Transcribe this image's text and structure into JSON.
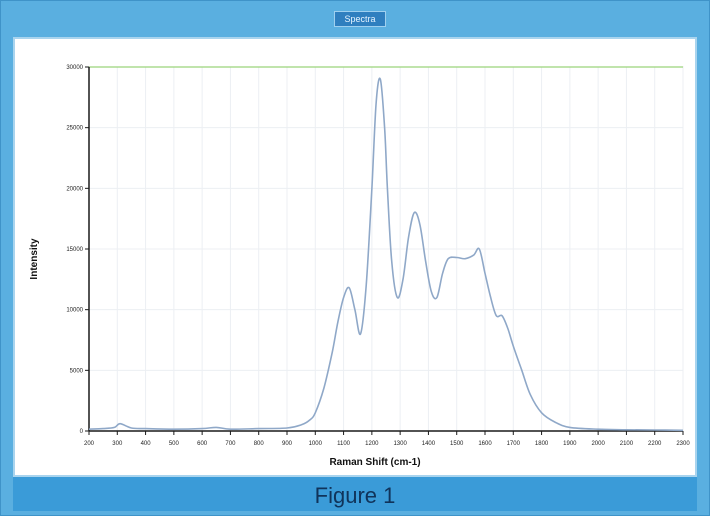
{
  "window": {
    "title_tab": "Spectra"
  },
  "caption": "Figure 1",
  "chart_data": {
    "type": "line",
    "xlabel": "Raman Shift (cm-1)",
    "ylabel": "Intensity",
    "xlim": [
      200,
      2300
    ],
    "ylim": [
      0,
      30000
    ],
    "x_ticks": [
      200,
      300,
      400,
      500,
      600,
      700,
      800,
      900,
      1000,
      1100,
      1200,
      1300,
      1400,
      1500,
      1600,
      1700,
      1800,
      1900,
      2000,
      2100,
      2200,
      2300
    ],
    "y_ticks": [
      0,
      5000,
      10000,
      15000,
      20000,
      25000,
      30000
    ],
    "grid": true,
    "legend": "none",
    "colors": {
      "line": "#8fa8c8",
      "frame": "#a9d4ee",
      "axis": "#1a1a1a",
      "grid": "#eceff3",
      "background_panel": "#5aafe0"
    },
    "series": [
      {
        "x": [
          200,
          250,
          290,
          310,
          350,
          400,
          500,
          600,
          650,
          700,
          800,
          900,
          950,
          980,
          1000,
          1030,
          1060,
          1080,
          1100,
          1120,
          1140,
          1160,
          1180,
          1200,
          1215,
          1230,
          1245,
          1255,
          1270,
          1290,
          1310,
          1330,
          1350,
          1370,
          1390,
          1410,
          1430,
          1450,
          1470,
          1500,
          1530,
          1560,
          1580,
          1600,
          1620,
          1640,
          1660,
          1680,
          1700,
          1730,
          1760,
          1800,
          1850,
          1900,
          2000,
          2100,
          2200,
          2300
        ],
        "y": [
          150,
          200,
          300,
          600,
          250,
          200,
          150,
          200,
          300,
          150,
          200,
          250,
          500,
          900,
          1500,
          3500,
          6500,
          9000,
          11000,
          11800,
          10000,
          8000,
          12000,
          20000,
          27000,
          29000,
          25000,
          20000,
          14000,
          11000,
          12500,
          16000,
          18000,
          17000,
          14000,
          11500,
          11000,
          13000,
          14200,
          14300,
          14200,
          14500,
          15000,
          13000,
          11000,
          9500,
          9500,
          8500,
          7000,
          5000,
          3000,
          1500,
          700,
          300,
          150,
          100,
          80,
          60
        ]
      }
    ]
  }
}
